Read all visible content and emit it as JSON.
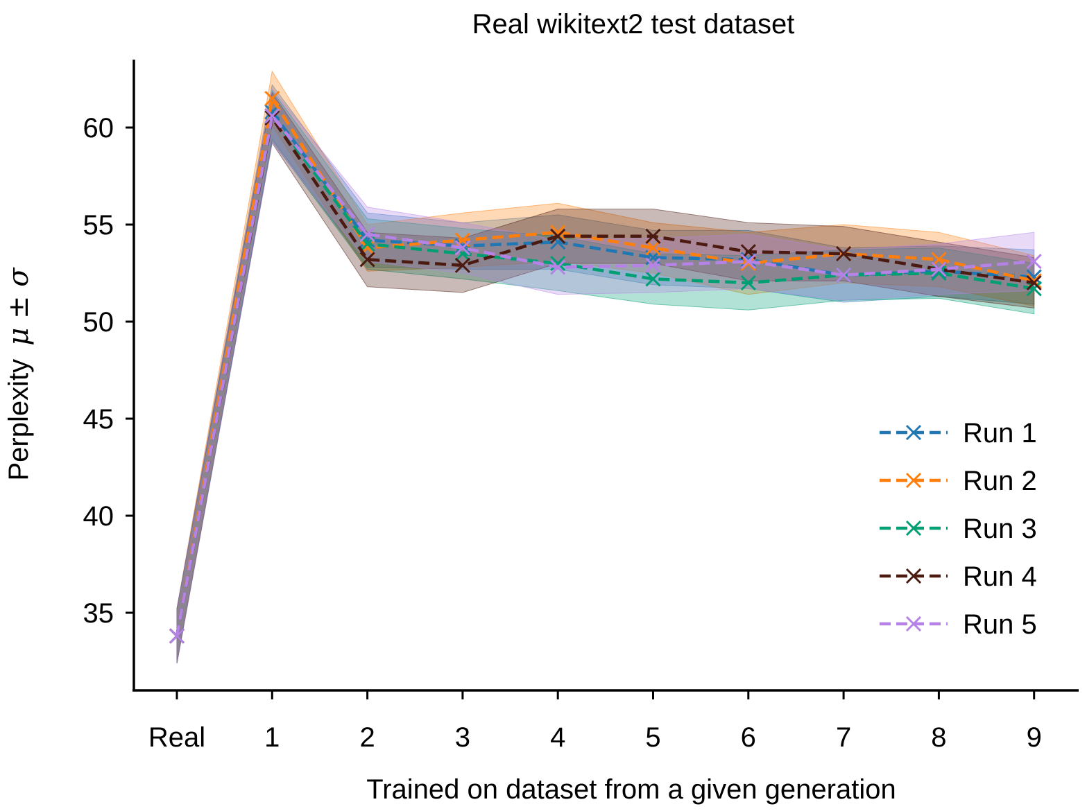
{
  "chart_data": {
    "type": "line",
    "title": "Real wikitext2 test dataset",
    "xlabel": "Trained on dataset from a given generation",
    "ylabel_text": "Perplexity",
    "ylabel_math": "μ ± σ",
    "categories": [
      "Real",
      "1",
      "2",
      "3",
      "4",
      "5",
      "6",
      "7",
      "8",
      "9"
    ],
    "ylim": [
      31.0,
      63.5
    ],
    "yticks": [
      35,
      40,
      45,
      50,
      55,
      60
    ],
    "grid": false,
    "legend_position": "right",
    "series": [
      {
        "name": "Run 1",
        "color": "#1f77b4",
        "values": [
          33.8,
          60.8,
          54.2,
          53.9,
          54.1,
          53.3,
          53.2,
          52.4,
          52.6,
          52.3
        ],
        "std": [
          1.4,
          1.4,
          1.4,
          1.2,
          1.4,
          1.4,
          1.5,
          1.4,
          1.3,
          1.4
        ]
      },
      {
        "name": "Run 2",
        "color": "#ff7f0e",
        "values": [
          33.8,
          61.5,
          53.8,
          54.2,
          54.6,
          53.8,
          53.0,
          53.5,
          53.2,
          52.1
        ],
        "std": [
          1.4,
          1.4,
          1.2,
          1.4,
          1.5,
          1.3,
          1.6,
          1.5,
          1.4,
          1.3
        ]
      },
      {
        "name": "Run 3",
        "color": "#009e73",
        "values": [
          33.8,
          60.6,
          54.0,
          53.5,
          53.0,
          52.2,
          52.0,
          52.4,
          52.5,
          51.7
        ],
        "std": [
          1.4,
          1.3,
          1.3,
          1.3,
          1.4,
          1.3,
          1.4,
          1.3,
          1.3,
          1.3
        ]
      },
      {
        "name": "Run 4",
        "color": "#4b1a10",
        "values": [
          33.8,
          60.5,
          53.2,
          52.9,
          54.4,
          54.4,
          53.6,
          53.5,
          52.7,
          52.0
        ],
        "std": [
          1.4,
          1.3,
          1.4,
          1.4,
          1.4,
          1.4,
          1.5,
          1.4,
          1.4,
          1.3
        ]
      },
      {
        "name": "Run 5",
        "color": "#b583e6",
        "values": [
          33.8,
          60.6,
          54.5,
          53.8,
          52.8,
          52.9,
          53.1,
          52.4,
          52.7,
          53.1
        ],
        "std": [
          1.4,
          1.4,
          1.4,
          1.3,
          1.4,
          1.4,
          1.4,
          1.3,
          1.3,
          1.5
        ]
      }
    ]
  }
}
